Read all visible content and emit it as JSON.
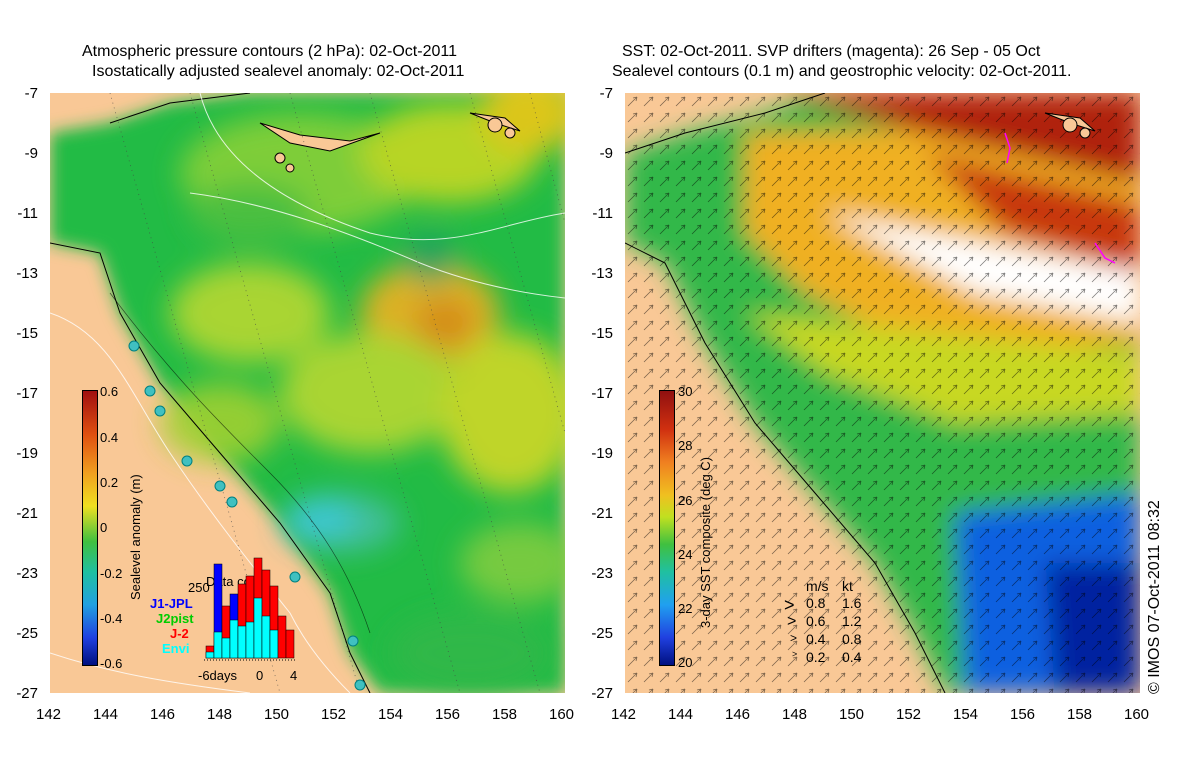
{
  "left_panel": {
    "title_line1": "Atmospheric pressure contours (2 hPa): 02-Oct-2011",
    "title_line2": "Isostatically adjusted sealevel anomaly: 02-Oct-2011",
    "colorbar": {
      "title": "Sealevel anomaly (m)",
      "ticks": [
        "0.6",
        "0.4",
        "0.2",
        "0",
        "-0.2",
        "-0.4",
        "-0.6"
      ]
    },
    "data_count": {
      "title": "Data count",
      "max_label": "250",
      "missions": [
        {
          "name": "J1-JPL",
          "color": "#0000ff"
        },
        {
          "name": "J2pist",
          "color": "#00cc00"
        },
        {
          "name": "J-2",
          "color": "#ff0000"
        },
        {
          "name": "Envi",
          "color": "#00ffff"
        }
      ],
      "x_labels": [
        "-6days",
        "0",
        "4"
      ]
    }
  },
  "right_panel": {
    "title_line1": "SST: 02-Oct-2011. SVP drifters (magenta): 26 Sep - 05 Oct",
    "title_line2": "Sealevel contours (0.1 m) and geostrophic velocity: 02-Oct-2011.",
    "colorbar": {
      "title": "3-day SST composite (deg C)",
      "ticks": [
        "30",
        "28",
        "26",
        "24",
        "22",
        "20"
      ]
    },
    "speed_legend": {
      "header_ms": "m/s",
      "header_kt": "kt",
      "rows": [
        {
          "ms": "0.8",
          "kt": "1.6"
        },
        {
          "ms": "0.6",
          "kt": "1.2"
        },
        {
          "ms": "0.4",
          "kt": "0.8"
        },
        {
          "ms": "0.2",
          "kt": "0.4"
        }
      ]
    }
  },
  "y_ticks": [
    "-7",
    "-9",
    "-11",
    "-13",
    "-15",
    "-17",
    "-19",
    "-21",
    "-23",
    "-25",
    "-27"
  ],
  "x_ticks": [
    "142",
    "144",
    "146",
    "148",
    "150",
    "152",
    "154",
    "156",
    "158",
    "160"
  ],
  "credit": "© IMOS 07-Oct-2011 08:32"
}
